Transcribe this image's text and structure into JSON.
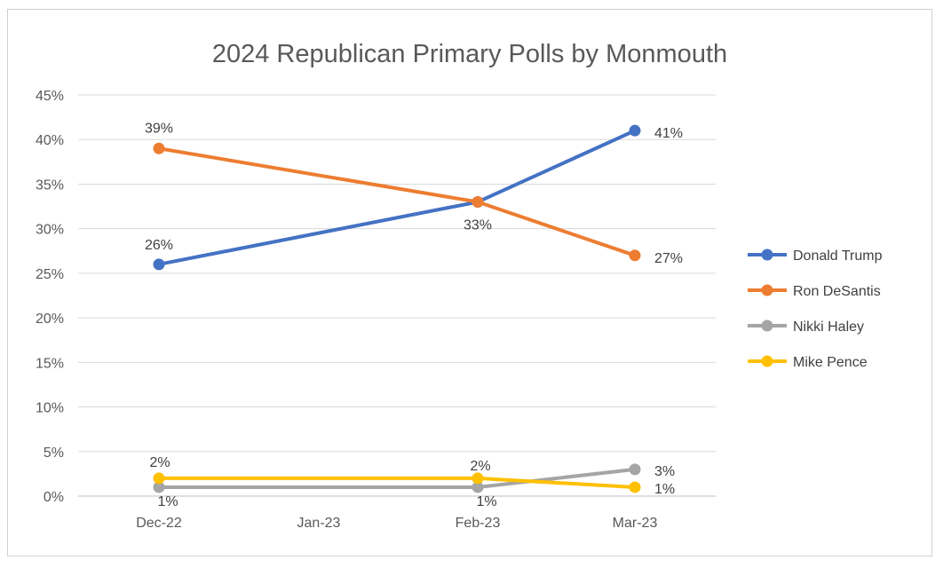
{
  "chart_data": {
    "type": "line",
    "title": "2024 Republican Primary Polls by Monmouth",
    "xlabel": "",
    "ylabel": "",
    "categories": [
      "Dec-22",
      "Jan-23",
      "Feb-23",
      "Mar-23"
    ],
    "y_ticks": [
      "0%",
      "5%",
      "10%",
      "15%",
      "20%",
      "25%",
      "30%",
      "35%",
      "40%",
      "45%"
    ],
    "ylim": [
      0,
      45
    ],
    "grid": true,
    "legend_position": "right",
    "series": [
      {
        "name": "Donald Trump",
        "color": "#4472C4",
        "values": [
          26,
          null,
          33,
          41
        ],
        "labels": [
          "26%",
          null,
          null,
          "41%"
        ]
      },
      {
        "name": "Ron DeSantis",
        "color": "#ED7D31",
        "values": [
          39,
          null,
          33,
          27
        ],
        "labels": [
          "39%",
          null,
          "33%",
          "27%"
        ]
      },
      {
        "name": "Nikki Haley",
        "color": "#A5A5A5",
        "values": [
          1,
          null,
          1,
          3
        ],
        "labels": [
          "1%",
          null,
          "1%",
          "3%"
        ]
      },
      {
        "name": "Mike Pence",
        "color": "#FFC000",
        "values": [
          2,
          null,
          2,
          1
        ],
        "labels": [
          "2%",
          null,
          "2%",
          "1%"
        ]
      }
    ]
  }
}
